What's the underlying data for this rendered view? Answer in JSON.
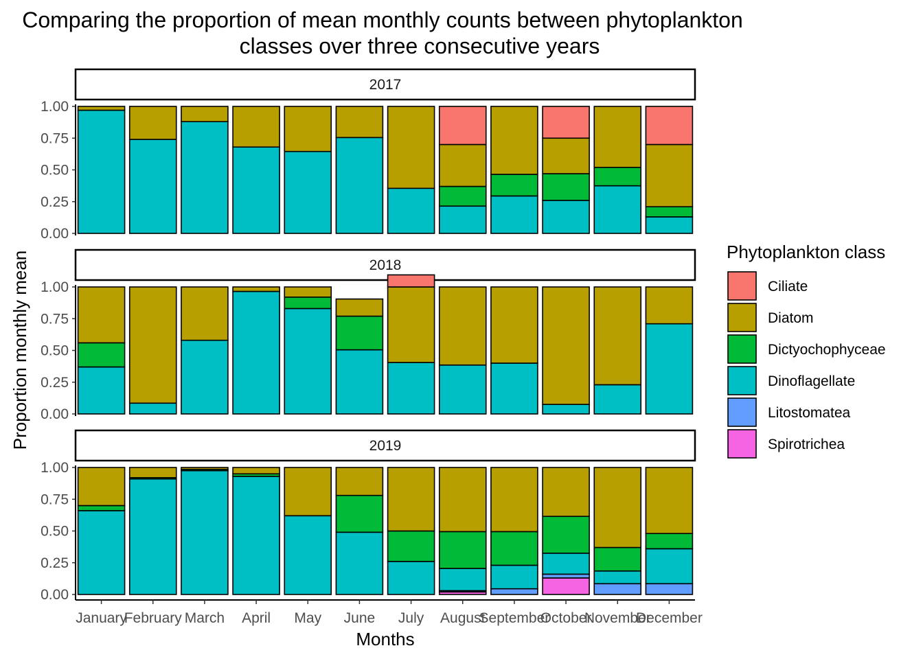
{
  "chart_data": {
    "type": "bar",
    "stacked": true,
    "title_line1": "Comparing the proportion of mean monthly counts between phytoplankton",
    "title_line2": "classes over three consecutive years",
    "xlabel": "Months",
    "ylabel": "Proportion monthly mean",
    "ylim": [
      0,
      1
    ],
    "yticks": [
      "0.00",
      "0.25",
      "0.50",
      "0.75",
      "1.00"
    ],
    "categories": [
      "January",
      "February",
      "March",
      "April",
      "May",
      "June",
      "July",
      "August",
      "September",
      "October",
      "November",
      "December"
    ],
    "legend": {
      "title": "Phytoplankton class",
      "position": "right",
      "items": [
        "Ciliate",
        "Diatom",
        "Dictyochophyceae",
        "Dinoflagellate",
        "Litostomatea",
        "Spirotrichea"
      ]
    },
    "colors": {
      "Ciliate": "#F8766D",
      "Diatom": "#B79F00",
      "Dictyochophyceae": "#00BA38",
      "Dinoflagellate": "#00BFC4",
      "Litostomatea": "#619CFF",
      "Spirotrichea": "#F564E3"
    },
    "stack_order": [
      "Spirotrichea",
      "Litostomatea",
      "Dinoflagellate",
      "Dictyochophyceae",
      "Diatom",
      "Ciliate"
    ],
    "panels": [
      {
        "label": "2017",
        "series": [
          {
            "name": "Ciliate",
            "values": [
              0,
              0,
              0,
              0,
              0,
              0,
              0,
              0.3,
              0,
              0.25,
              0,
              0.3
            ]
          },
          {
            "name": "Diatom",
            "values": [
              0.03,
              0.26,
              0.12,
              0.32,
              0.355,
              0.245,
              0.645,
              0.33,
              0.535,
              0.28,
              0.48,
              0.49
            ]
          },
          {
            "name": "Dictyochophyceae",
            "values": [
              0,
              0,
              0,
              0,
              0,
              0,
              0,
              0.155,
              0.17,
              0.21,
              0.145,
              0.08
            ]
          },
          {
            "name": "Dinoflagellate",
            "values": [
              0.97,
              0.74,
              0.88,
              0.68,
              0.645,
              0.755,
              0.355,
              0.215,
              0.295,
              0.26,
              0.375,
              0.13
            ]
          },
          {
            "name": "Litostomatea",
            "values": [
              0,
              0,
              0,
              0,
              0,
              0,
              0,
              0,
              0,
              0,
              0,
              0
            ]
          },
          {
            "name": "Spirotrichea",
            "values": [
              0,
              0,
              0,
              0,
              0,
              0,
              0,
              0,
              0,
              0,
              0,
              0
            ]
          }
        ]
      },
      {
        "label": "2018",
        "series": [
          {
            "name": "Ciliate",
            "values": [
              0,
              0,
              0,
              0,
              0,
              0,
              0.095,
              0,
              0,
              0,
              0,
              0
            ]
          },
          {
            "name": "Diatom",
            "values": [
              0.44,
              0.915,
              0.42,
              0.035,
              0.08,
              0.135,
              0.595,
              0.615,
              0.6,
              0.925,
              0.77,
              0.29
            ]
          },
          {
            "name": "Dictyochophyceae",
            "values": [
              0.19,
              0,
              0,
              0,
              0.09,
              0.265,
              0,
              0,
              0,
              0,
              0,
              0
            ]
          },
          {
            "name": "Dinoflagellate",
            "values": [
              0.37,
              0.085,
              0.58,
              0.965,
              0.83,
              0.505,
              0.405,
              0.385,
              0.4,
              0.075,
              0.23,
              0.71
            ]
          },
          {
            "name": "Litostomatea",
            "values": [
              0,
              0,
              0,
              0,
              0,
              0,
              0,
              0,
              0,
              0,
              0,
              0
            ]
          },
          {
            "name": "Spirotrichea",
            "values": [
              0,
              0,
              0,
              0,
              0,
              0,
              0,
              0,
              0,
              0,
              0,
              0
            ]
          }
        ]
      },
      {
        "label": "2019",
        "series": [
          {
            "name": "Ciliate",
            "values": [
              0,
              0,
              0,
              0,
              0,
              0,
              0,
              0,
              0,
              0,
              0,
              0
            ]
          },
          {
            "name": "Diatom",
            "values": [
              0.3,
              0.08,
              0.015,
              0.05,
              0.38,
              0.22,
              0.5,
              0.505,
              0.505,
              0.385,
              0.63,
              0.52
            ]
          },
          {
            "name": "Dictyochophyceae",
            "values": [
              0.04,
              0.01,
              0.01,
              0.02,
              0,
              0.29,
              0.24,
              0.29,
              0.265,
              0.29,
              0.185,
              0.12
            ]
          },
          {
            "name": "Dinoflagellate",
            "values": [
              0.66,
              0.91,
              0.975,
              0.93,
              0.62,
              0.49,
              0.26,
              0.175,
              0.185,
              0.165,
              0.1,
              0.275
            ]
          },
          {
            "name": "Litostomatea",
            "values": [
              0,
              0,
              0,
              0,
              0,
              0,
              0,
              0.01,
              0.045,
              0.03,
              0.085,
              0.085
            ]
          },
          {
            "name": "Spirotrichea",
            "values": [
              0,
              0,
              0,
              0,
              0,
              0,
              0,
              0.02,
              0,
              0.13,
              0,
              0
            ]
          }
        ]
      }
    ]
  }
}
